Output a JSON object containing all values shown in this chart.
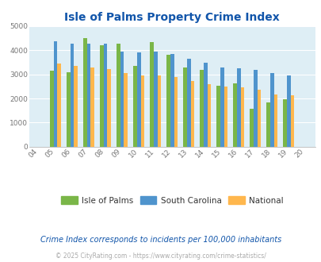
{
  "title": "Isle of Palms Property Crime Index",
  "years": [
    "04",
    "05",
    "06",
    "07",
    "08",
    "09",
    "10",
    "11",
    "12",
    "13",
    "14",
    "15",
    "16",
    "17",
    "18",
    "19",
    "20"
  ],
  "isle_of_palms": [
    0,
    3150,
    3100,
    4500,
    4200,
    4280,
    3350,
    4350,
    3820,
    3280,
    3200,
    2540,
    2640,
    1560,
    1840,
    1970,
    0
  ],
  "south_carolina": [
    0,
    4380,
    4260,
    4280,
    4260,
    3940,
    3920,
    3940,
    3840,
    3650,
    3490,
    3290,
    3250,
    3180,
    3060,
    2960,
    0
  ],
  "national": [
    0,
    3450,
    3360,
    3280,
    3230,
    3060,
    2960,
    2950,
    2890,
    2720,
    2610,
    2490,
    2460,
    2350,
    2180,
    2140,
    0
  ],
  "iop_color": "#7ab648",
  "sc_color": "#4f94cd",
  "nat_color": "#ffb74d",
  "bg_color": "#deeef5",
  "title_color": "#1155aa",
  "legend_labels": [
    "Isle of Palms",
    "South Carolina",
    "National"
  ],
  "footer_text": "Crime Index corresponds to incidents per 100,000 inhabitants",
  "copyright_text": "© 2025 CityRating.com - https://www.cityrating.com/crime-statistics/",
  "ylim": [
    0,
    5000
  ],
  "yticks": [
    0,
    1000,
    2000,
    3000,
    4000,
    5000
  ],
  "bar_width": 0.22
}
